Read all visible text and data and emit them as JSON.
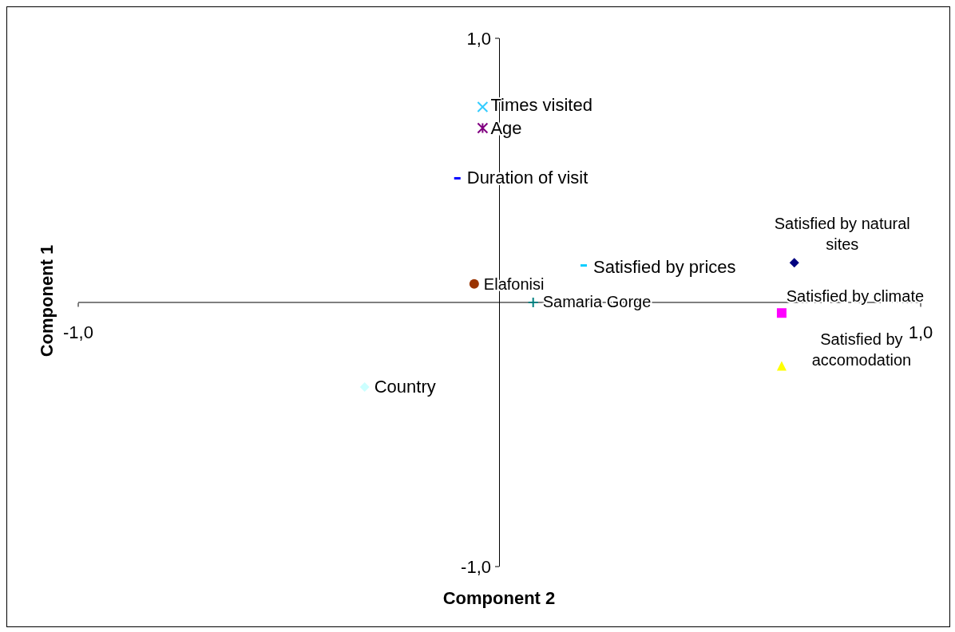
{
  "chart_data": {
    "type": "scatter",
    "xlabel": "Component 2",
    "ylabel": "Component 1",
    "xlim": [
      -1,
      1
    ],
    "ylim": [
      -1,
      1
    ],
    "xticks": [
      {
        "value": -1,
        "label": "-1,0"
      },
      {
        "value": 1,
        "label": "1,0"
      }
    ],
    "yticks": [
      {
        "value": -1,
        "label": "-1,0"
      },
      {
        "value": 1,
        "label": "1,0"
      }
    ],
    "grid": false,
    "legend": false,
    "series": [
      {
        "name": "Times visited",
        "color": "#33ccff",
        "marker": "cross",
        "x": [
          -0.04
        ],
        "values": [
          0.74
        ]
      },
      {
        "name": "Age",
        "color": "#800080",
        "x": [
          -0.04
        ],
        "values": [
          0.66
        ]
      },
      {
        "name": "Duration of visit",
        "color": "#0000ff",
        "x": [
          -0.1
        ],
        "values": [
          0.47
        ]
      },
      {
        "name": "Satisfied by natural sites",
        "color": "#000080",
        "marker": "diamond",
        "x": [
          0.7
        ],
        "values": [
          0.15
        ]
      },
      {
        "name": "Satisfied by prices",
        "color": "#00ccff",
        "x": [
          0.2
        ],
        "values": [
          0.14
        ]
      },
      {
        "name": "Elafonisi",
        "color": "#993300",
        "marker": "circle",
        "x": [
          -0.06
        ],
        "values": [
          0.07
        ]
      },
      {
        "name": "Samaria Gorge",
        "color": "#008080",
        "marker": "plus",
        "x": [
          0.08
        ],
        "values": [
          0.0
        ]
      },
      {
        "name": "Satisfied by climate",
        "color": "#ff00ff",
        "marker": "square",
        "x": [
          0.67
        ],
        "values": [
          -0.04
        ]
      },
      {
        "name": "Satisfied by accomodation",
        "color": "#ffff00",
        "marker": "triangle",
        "x": [
          0.67
        ],
        "values": [
          -0.24
        ]
      },
      {
        "name": "Country",
        "color": "#ccffff",
        "marker": "diamond",
        "x": [
          -0.32
        ],
        "values": [
          -0.32
        ]
      }
    ]
  }
}
